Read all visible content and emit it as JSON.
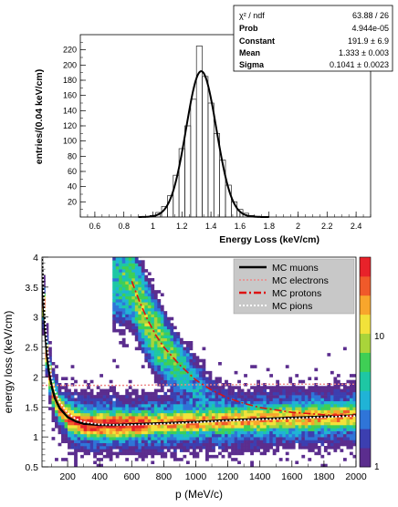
{
  "chart_data": [
    {
      "type": "bar",
      "subtype": "histogram-with-gaussian-fit",
      "xlabel": "Energy Loss (keV/cm)",
      "ylabel": "entries/(0.04 keV/cm)",
      "xlim": [
        0.5,
        2.5
      ],
      "ylim": [
        0,
        240
      ],
      "x_ticks": [
        "0.6",
        "0.8",
        "1",
        "1.2",
        "1.4",
        "1.6",
        "1.8",
        "2",
        "2.2",
        "2.4"
      ],
      "y_ticks": [
        "20",
        "40",
        "60",
        "80",
        "100",
        "120",
        "140",
        "160",
        "180",
        "200",
        "220"
      ],
      "bin_width": 0.04,
      "bin_left_edges": [
        0.98,
        1.02,
        1.06,
        1.1,
        1.14,
        1.18,
        1.22,
        1.26,
        1.3,
        1.34,
        1.38,
        1.42,
        1.46,
        1.5,
        1.54,
        1.58,
        1.62,
        1.66,
        1.7
      ],
      "values": [
        2,
        6,
        14,
        28,
        55,
        90,
        120,
        155,
        225,
        185,
        150,
        110,
        75,
        42,
        20,
        10,
        5,
        2,
        1
      ],
      "fit": {
        "function": "gaussian",
        "constant": 191.9,
        "mean": 1.333,
        "sigma": 0.1041
      },
      "stats_box": [
        {
          "label": "χ² / ndf",
          "value": "63.88 / 26"
        },
        {
          "label": "Prob",
          "value": "4.944e-05"
        },
        {
          "label": "Constant",
          "value": "191.9 ± 6.9"
        },
        {
          "label": "Mean",
          "value": "1.333 ± 0.003"
        },
        {
          "label": "Sigma",
          "value": "0.1041 ± 0.0023"
        }
      ]
    },
    {
      "type": "heatmap",
      "xlabel": "p (MeV/c)",
      "ylabel": "energy loss (keV/cm)",
      "xlim": [
        40,
        2000
      ],
      "ylim": [
        0.5,
        4
      ],
      "x_ticks": [
        "200",
        "400",
        "600",
        "800",
        "1000",
        "1200",
        "1400",
        "1600",
        "1800",
        "2000"
      ],
      "y_ticks": [
        "0.5",
        "1",
        "1.5",
        "2",
        "2.5",
        "3",
        "3.5",
        "4"
      ],
      "color_scale": {
        "type": "log",
        "range": [
          1,
          40
        ],
        "tick_labels": [
          "1",
          "10"
        ],
        "colors": [
          "#5b2d8e",
          "#3c3fb0",
          "#2f75d8",
          "#20b3d6",
          "#1ec7a4",
          "#3fcf55",
          "#a9d43a",
          "#f2e23a",
          "#f8a62c",
          "#f05a2a",
          "#e8222a"
        ]
      },
      "density_features": [
        {
          "description_region": "band",
          "p_range": [
            100,
            2000
          ],
          "center_dEdx": 1.25,
          "peak_intensity": 30
        },
        {
          "description_region": "proton band",
          "p_range": [
            500,
            1200
          ],
          "center_dEdx": 2.8,
          "peak_intensity": 8
        }
      ],
      "legend": {
        "position": "top-right",
        "entries": [
          {
            "name": "MC muons",
            "color": "#000000",
            "style": "solid"
          },
          {
            "name": "MC electrons",
            "color": "#ee8888",
            "style": "dotted"
          },
          {
            "name": "MC protons",
            "color": "#dd1111",
            "style": "dash-dot"
          },
          {
            "name": "MC pions",
            "color": "#ffffff",
            "style": "dotted"
          }
        ]
      },
      "series": [
        {
          "name": "MC muons",
          "x": [
            40,
            50,
            60,
            70,
            80,
            100,
            120,
            150,
            200,
            250,
            300,
            400,
            500,
            600,
            800,
            1000,
            1200,
            1400,
            1600,
            1800,
            2000
          ],
          "y": [
            4.0,
            3.2,
            2.75,
            2.4,
            2.15,
            1.85,
            1.65,
            1.48,
            1.33,
            1.26,
            1.22,
            1.2,
            1.2,
            1.21,
            1.23,
            1.25,
            1.28,
            1.3,
            1.32,
            1.34,
            1.36
          ]
        },
        {
          "name": "MC electrons",
          "x": [
            40,
            200,
            400,
            600,
            800,
            1000,
            1200,
            1400,
            1600,
            1800,
            2000
          ],
          "y": [
            1.86,
            1.86,
            1.86,
            1.86,
            1.87,
            1.87,
            1.87,
            1.88,
            1.88,
            1.88,
            1.88
          ]
        },
        {
          "name": "MC protons",
          "x": [
            600,
            650,
            700,
            750,
            800,
            900,
            1000,
            1100,
            1200,
            1300,
            1400,
            1600,
            1800,
            2000
          ],
          "y": [
            3.6,
            3.25,
            2.95,
            2.7,
            2.5,
            2.2,
            1.95,
            1.78,
            1.65,
            1.56,
            1.49,
            1.41,
            1.37,
            1.35
          ]
        },
        {
          "name": "MC pions",
          "x": [
            40,
            50,
            60,
            70,
            80,
            100,
            120,
            150,
            200,
            250,
            300,
            400,
            500,
            600,
            800,
            1000,
            1200,
            1400,
            1600,
            1800,
            2000
          ],
          "y": [
            4.0,
            3.45,
            2.95,
            2.6,
            2.35,
            2.0,
            1.78,
            1.58,
            1.4,
            1.3,
            1.25,
            1.21,
            1.2,
            1.2,
            1.22,
            1.24,
            1.27,
            1.29,
            1.31,
            1.33,
            1.35
          ]
        }
      ]
    }
  ]
}
